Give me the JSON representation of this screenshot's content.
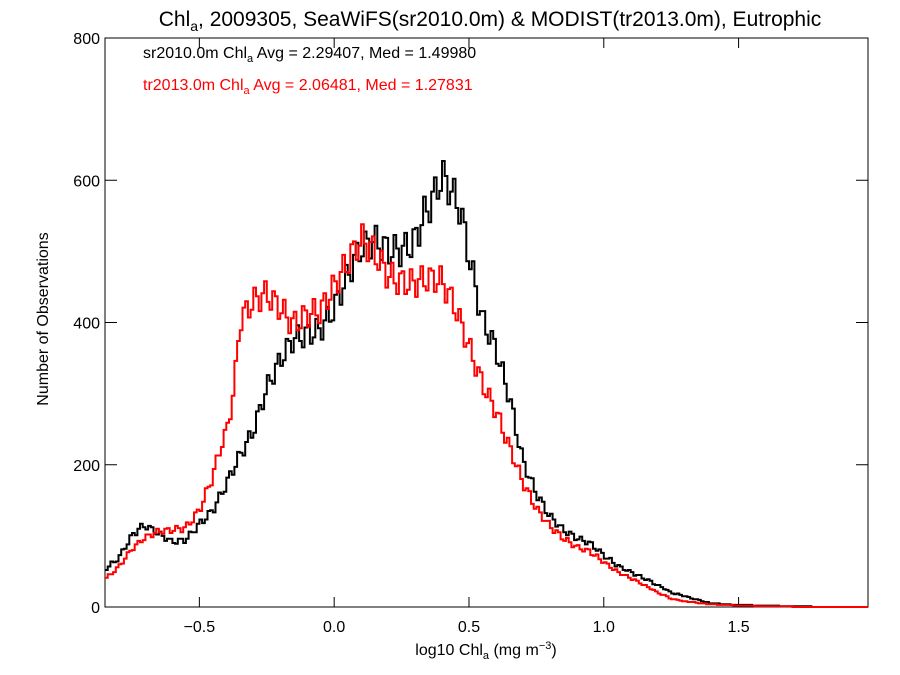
{
  "chart_data": {
    "type": "line",
    "title_parts": [
      "Chl",
      "a",
      ", 2009305, SeaWiFS(sr2010.0m) & MODIST(tr2013.0m), Eutrophic"
    ],
    "xlabel_parts": [
      "log10 Chl",
      "a",
      " (mg m",
      "−3",
      ")"
    ],
    "ylabel": "Number of Observations",
    "xlim": [
      -0.85,
      1.98
    ],
    "ylim": [
      0,
      800
    ],
    "x_ticks": [
      -0.5,
      0.0,
      0.5,
      1.0,
      1.5
    ],
    "x_tick_labels": [
      "−0.5",
      "0.0",
      "0.5",
      "1.0",
      "1.5"
    ],
    "y_ticks": [
      0,
      200,
      400,
      600,
      800
    ],
    "y_tick_labels": [
      "0",
      "200",
      "400",
      "600",
      "800"
    ],
    "legend_placement": "top-left",
    "series": [
      {
        "name": "sr2010.0m",
        "color": "#000000",
        "annotation_parts": [
          "sr2010.0m Chl",
          "a",
          " Avg = 2.29407, Med = 1.49980"
        ],
        "points": [
          [
            -0.85,
            55
          ],
          [
            -0.8,
            70
          ],
          [
            -0.75,
            100
          ],
          [
            -0.72,
            110
          ],
          [
            -0.7,
            112
          ],
          [
            -0.65,
            100
          ],
          [
            -0.6,
            90
          ],
          [
            -0.55,
            95
          ],
          [
            -0.5,
            120
          ],
          [
            -0.45,
            140
          ],
          [
            -0.4,
            175
          ],
          [
            -0.35,
            210
          ],
          [
            -0.3,
            240
          ],
          [
            -0.25,
            300
          ],
          [
            -0.2,
            345
          ],
          [
            -0.15,
            385
          ],
          [
            -0.1,
            395
          ],
          [
            -0.05,
            400
          ],
          [
            0.0,
            420
          ],
          [
            0.05,
            455
          ],
          [
            0.1,
            490
          ],
          [
            0.15,
            505
          ],
          [
            0.2,
            505
          ],
          [
            0.25,
            515
          ],
          [
            0.3,
            530
          ],
          [
            0.33,
            560
          ],
          [
            0.37,
            580
          ],
          [
            0.4,
            600
          ],
          [
            0.43,
            575
          ],
          [
            0.47,
            540
          ],
          [
            0.5,
            480
          ],
          [
            0.55,
            400
          ],
          [
            0.6,
            370
          ],
          [
            0.65,
            305
          ],
          [
            0.7,
            210
          ],
          [
            0.75,
            160
          ],
          [
            0.8,
            125
          ],
          [
            0.85,
            105
          ],
          [
            0.9,
            95
          ],
          [
            0.95,
            90
          ],
          [
            1.0,
            75
          ],
          [
            1.05,
            60
          ],
          [
            1.1,
            50
          ],
          [
            1.15,
            40
          ],
          [
            1.2,
            30
          ],
          [
            1.25,
            20
          ],
          [
            1.3,
            15
          ],
          [
            1.35,
            10
          ],
          [
            1.4,
            5
          ],
          [
            1.5,
            3
          ],
          [
            1.6,
            2
          ],
          [
            1.7,
            1
          ],
          [
            1.85,
            0
          ],
          [
            1.98,
            0
          ]
        ]
      },
      {
        "name": "tr2013.0m",
        "color": "#ff0000",
        "annotation_parts": [
          "tr2013.0m Chl",
          "a",
          " Avg = 2.06481, Med = 1.27831"
        ],
        "points": [
          [
            -0.85,
            40
          ],
          [
            -0.8,
            55
          ],
          [
            -0.75,
            80
          ],
          [
            -0.7,
            95
          ],
          [
            -0.65,
            105
          ],
          [
            -0.6,
            110
          ],
          [
            -0.55,
            115
          ],
          [
            -0.5,
            140
          ],
          [
            -0.45,
            185
          ],
          [
            -0.42,
            225
          ],
          [
            -0.4,
            240
          ],
          [
            -0.37,
            300
          ],
          [
            -0.35,
            390
          ],
          [
            -0.3,
            420
          ],
          [
            -0.25,
            440
          ],
          [
            -0.2,
            430
          ],
          [
            -0.15,
            410
          ],
          [
            -0.1,
            420
          ],
          [
            -0.05,
            415
          ],
          [
            0.0,
            440
          ],
          [
            0.05,
            470
          ],
          [
            0.1,
            510
          ],
          [
            0.15,
            505
          ],
          [
            0.2,
            480
          ],
          [
            0.25,
            470
          ],
          [
            0.3,
            460
          ],
          [
            0.35,
            455
          ],
          [
            0.4,
            445
          ],
          [
            0.45,
            410
          ],
          [
            0.5,
            365
          ],
          [
            0.55,
            320
          ],
          [
            0.6,
            285
          ],
          [
            0.65,
            230
          ],
          [
            0.7,
            175
          ],
          [
            0.75,
            135
          ],
          [
            0.8,
            110
          ],
          [
            0.85,
            95
          ],
          [
            0.9,
            85
          ],
          [
            0.95,
            80
          ],
          [
            1.0,
            65
          ],
          [
            1.05,
            50
          ],
          [
            1.1,
            40
          ],
          [
            1.15,
            30
          ],
          [
            1.2,
            20
          ],
          [
            1.25,
            12
          ],
          [
            1.3,
            8
          ],
          [
            1.4,
            4
          ],
          [
            1.5,
            2
          ],
          [
            1.6,
            1
          ],
          [
            1.8,
            0
          ],
          [
            1.98,
            0
          ]
        ]
      }
    ]
  }
}
